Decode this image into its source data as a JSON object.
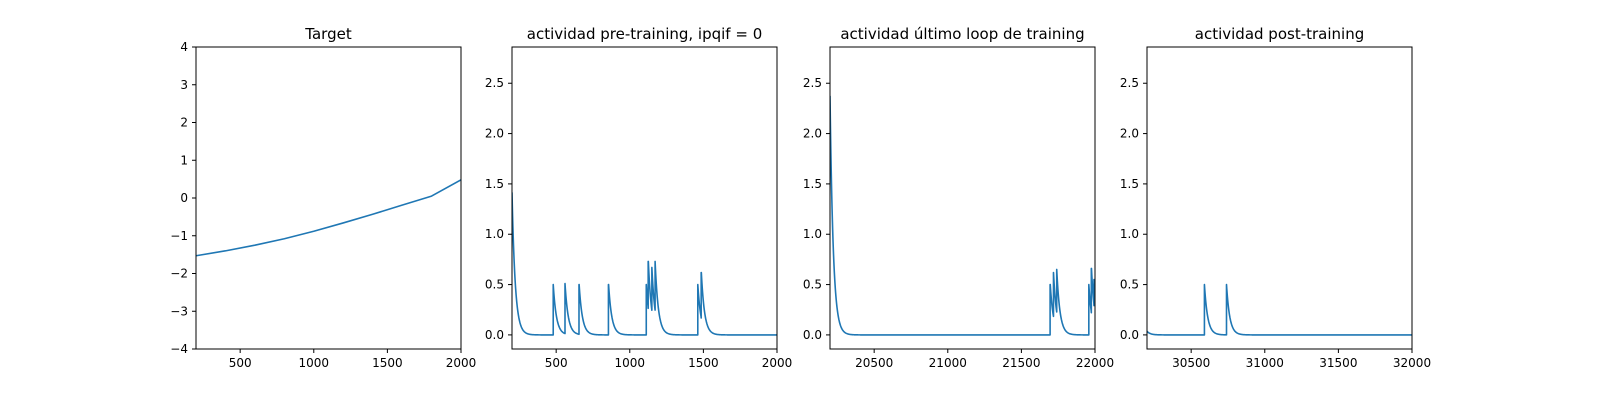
{
  "chart_data": [
    {
      "type": "line",
      "title": "Target",
      "xlabel": "",
      "ylabel": "",
      "xlim": [
        200,
        2000
      ],
      "ylim": [
        -4,
        4
      ],
      "xticks": [
        500,
        1000,
        1500,
        2000
      ],
      "yticks": [
        -4,
        -3,
        -2,
        -1,
        0,
        1,
        2,
        3,
        4
      ],
      "ytick_labels": [
        "−4",
        "−3",
        "−2",
        "−1",
        "0",
        "1",
        "2",
        "3",
        "4"
      ],
      "grid": false,
      "color": "#1f77b4",
      "series": [
        {
          "x": [
            200,
            400,
            600,
            800,
            1000,
            1200,
            1400,
            1600,
            1800,
            2000
          ],
          "y": [
            -1.53,
            -1.4,
            -1.25,
            -1.08,
            -0.88,
            -0.66,
            -0.43,
            -0.19,
            0.05,
            0.48
          ]
        }
      ]
    },
    {
      "type": "line",
      "title": "actividad pre-training, ipqif = 0",
      "xlabel": "",
      "ylabel": "",
      "xlim": [
        200,
        2000
      ],
      "ylim": [
        -0.14,
        2.86
      ],
      "xticks": [
        500,
        1000,
        1500,
        2000
      ],
      "yticks": [
        0.0,
        0.5,
        1.0,
        1.5,
        2.0,
        2.5
      ],
      "ytick_labels": [
        "0.0",
        "0.5",
        "1.0",
        "1.5",
        "2.0",
        "2.5"
      ],
      "grid": false,
      "color": "#1f77b4",
      "baseline": 0,
      "tau": 22,
      "initial": 1.55,
      "spikes": [
        {
          "x": 480,
          "h": 0.5
        },
        {
          "x": 560,
          "h": 0.51
        },
        {
          "x": 655,
          "h": 0.5
        },
        {
          "x": 855,
          "h": 0.5
        },
        {
          "x": 1112,
          "h": 0.5
        },
        {
          "x": 1125,
          "h": 0.73
        },
        {
          "x": 1150,
          "h": 0.67
        },
        {
          "x": 1172,
          "h": 0.73
        },
        {
          "x": 1462,
          "h": 0.5
        },
        {
          "x": 1485,
          "h": 0.62
        }
      ]
    },
    {
      "type": "line",
      "title": "actividad último loop de training",
      "xlabel": "",
      "ylabel": "",
      "xlim": [
        20200,
        22000
      ],
      "ylim": [
        -0.14,
        2.86
      ],
      "xticks": [
        20500,
        21000,
        21500,
        22000
      ],
      "yticks": [
        0.0,
        0.5,
        1.0,
        1.5,
        2.0,
        2.5
      ],
      "ytick_labels": [
        "0.0",
        "0.5",
        "1.0",
        "1.5",
        "2.0",
        "2.5"
      ],
      "grid": false,
      "color": "#1f77b4",
      "baseline": 0,
      "tau": 22,
      "initial": 2.6,
      "spikes": [
        {
          "x": 21695,
          "h": 0.5
        },
        {
          "x": 21718,
          "h": 0.62
        },
        {
          "x": 21740,
          "h": 0.65
        },
        {
          "x": 21958,
          "h": 0.5
        },
        {
          "x": 21975,
          "h": 0.66
        },
        {
          "x": 21993,
          "h": 0.55
        }
      ]
    },
    {
      "type": "line",
      "title": "actividad post-training",
      "xlabel": "",
      "ylabel": "",
      "xlim": [
        30200,
        32000
      ],
      "ylim": [
        -0.14,
        2.86
      ],
      "xticks": [
        30500,
        31000,
        31500,
        32000
      ],
      "yticks": [
        0.0,
        0.5,
        1.0,
        1.5,
        2.0,
        2.5
      ],
      "ytick_labels": [
        "0.0",
        "0.5",
        "1.0",
        "1.5",
        "2.0",
        "2.5"
      ],
      "grid": false,
      "color": "#1f77b4",
      "baseline": 0,
      "tau": 22,
      "initial": 0.04,
      "spikes": [
        {
          "x": 30590,
          "h": 0.5
        },
        {
          "x": 30740,
          "h": 0.5
        }
      ]
    }
  ]
}
